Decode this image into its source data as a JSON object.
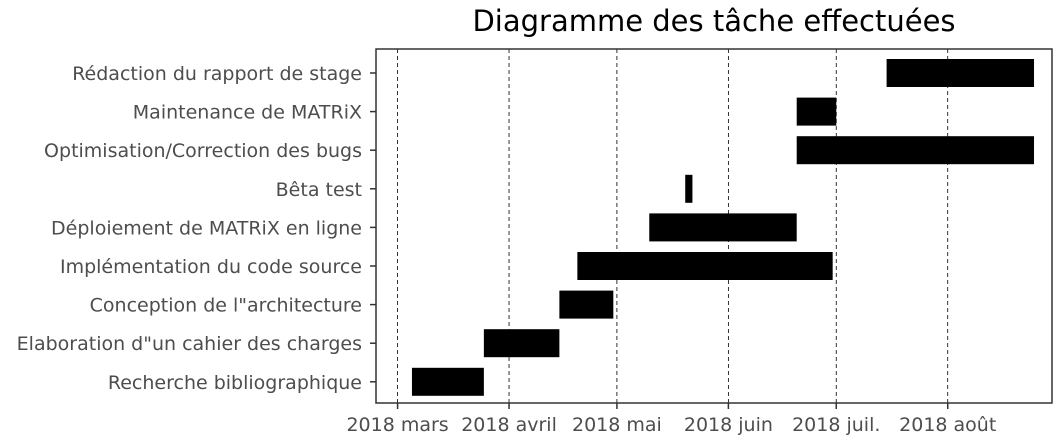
{
  "chart_data": {
    "type": "gantt",
    "title": "Diagramme des tâche effectuées",
    "xlabel": "",
    "ylabel": "",
    "x_axis": {
      "type": "date",
      "range": [
        "2018-02-23",
        "2018-08-30"
      ],
      "ticks": [
        {
          "date": "2018-03-01",
          "label": "2018 mars"
        },
        {
          "date": "2018-04-01",
          "label": "2018 avril"
        },
        {
          "date": "2018-05-01",
          "label": "2018 mai"
        },
        {
          "date": "2018-06-01",
          "label": "2018 juin"
        },
        {
          "date": "2018-07-01",
          "label": "2018 juil."
        },
        {
          "date": "2018-08-01",
          "label": "2018 août"
        }
      ],
      "grid": "vertical-dashed"
    },
    "tasks": [
      {
        "label": "Rédaction du rapport de stage",
        "start": "2018-07-15",
        "end": "2018-08-25"
      },
      {
        "label": "Maintenance de MATRiX",
        "start": "2018-06-20",
        "end": "2018-07-01"
      },
      {
        "label": "Optimisation/Correction des bugs",
        "start": "2018-06-20",
        "end": "2018-08-25"
      },
      {
        "label": "Bêta test",
        "start": "2018-05-20",
        "end": "2018-05-22"
      },
      {
        "label": "Déploiement de MATRiX en ligne",
        "start": "2018-05-10",
        "end": "2018-06-20"
      },
      {
        "label": "Implémentation du code source",
        "start": "2018-04-20",
        "end": "2018-06-30"
      },
      {
        "label": "Conception de l\"architecture",
        "start": "2018-04-15",
        "end": "2018-04-30"
      },
      {
        "label": "Elaboration d\"un cahier des charges",
        "start": "2018-03-25",
        "end": "2018-04-15"
      },
      {
        "label": "Recherche bibliographique",
        "start": "2018-03-05",
        "end": "2018-03-25"
      }
    ],
    "bar_color": "#000000"
  }
}
